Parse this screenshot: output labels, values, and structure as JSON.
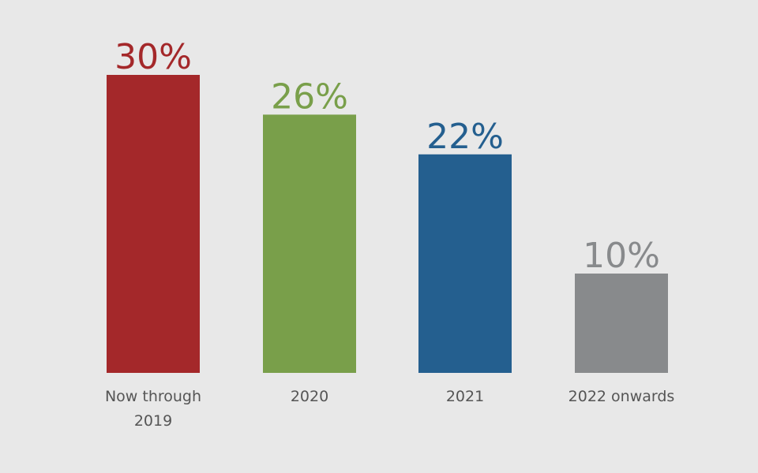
{
  "chart_data": {
    "type": "bar",
    "title": "",
    "xlabel": "",
    "ylabel": "",
    "grid": false,
    "ylim": [
      0,
      35
    ],
    "unit": "%",
    "categories": [
      [
        "Now through",
        "2019"
      ],
      [
        "2020"
      ],
      [
        "2021"
      ],
      [
        "2022 onwards"
      ]
    ],
    "values": [
      30,
      26,
      22,
      10
    ],
    "value_labels": [
      "30%",
      "26%",
      "22%",
      "10%"
    ],
    "colors": [
      "#a4282a",
      "#799f4a",
      "#245f8f",
      "#888a8c"
    ]
  }
}
